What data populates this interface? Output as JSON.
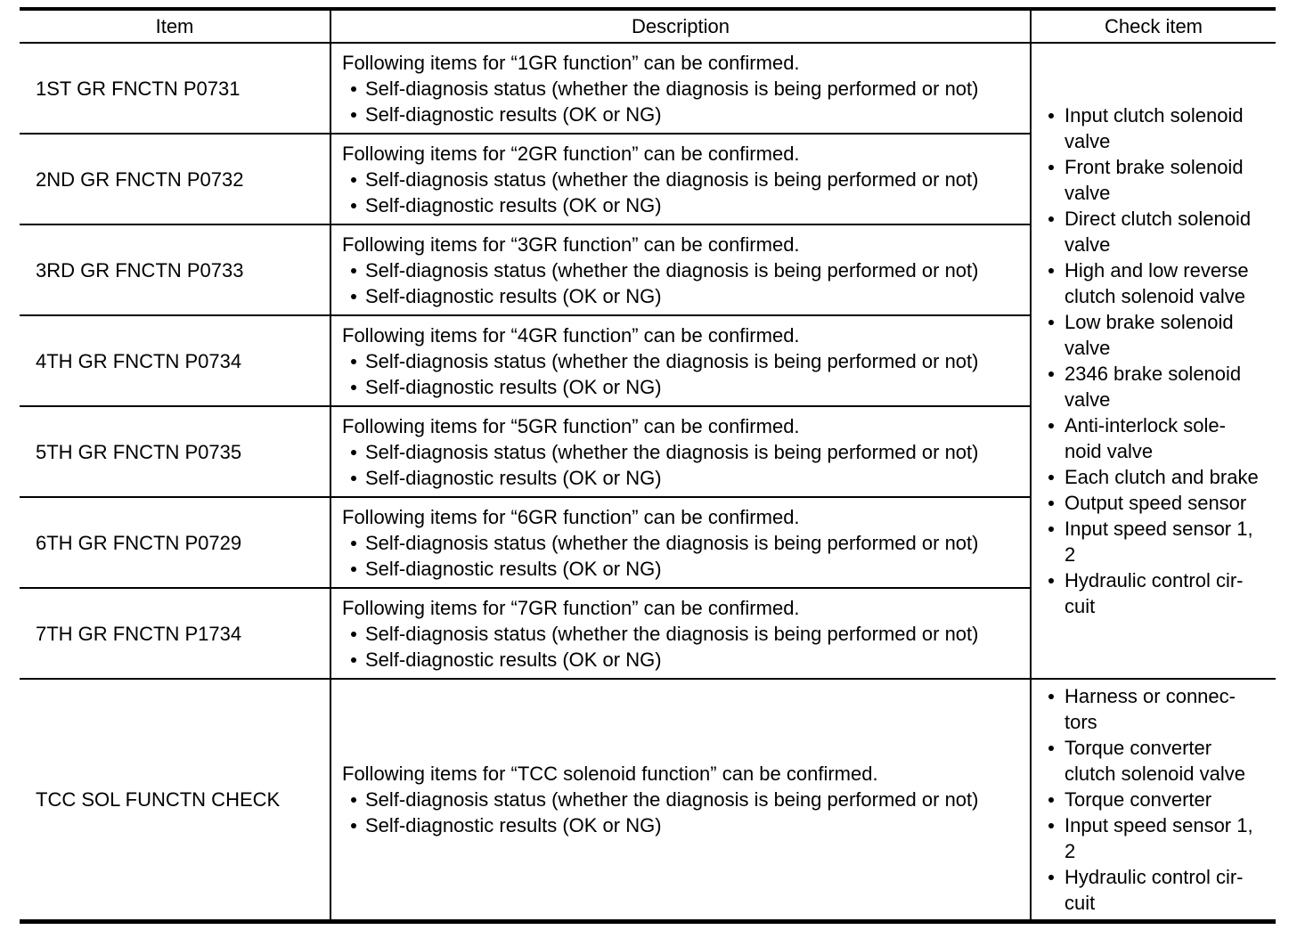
{
  "table": {
    "headers": {
      "item": "Item",
      "description": "Description",
      "check": "Check item"
    },
    "gear_rows": [
      {
        "item": "1ST GR FNCTN P0731",
        "desc_intro": "Following items for “1GR function” can be confirmed.",
        "desc_bullets": [
          "Self-diagnosis status (whether the diagnosis is being performed or not)",
          "Self-diagnostic results (OK or NG)"
        ]
      },
      {
        "item": "2ND GR FNCTN P0732",
        "desc_intro": "Following items for “2GR function” can be confirmed.",
        "desc_bullets": [
          "Self-diagnosis status (whether the diagnosis is being performed or not)",
          "Self-diagnostic results (OK or NG)"
        ]
      },
      {
        "item": "3RD GR FNCTN P0733",
        "desc_intro": "Following items for “3GR function” can be confirmed.",
        "desc_bullets": [
          "Self-diagnosis status (whether the diagnosis is being performed or not)",
          "Self-diagnostic results (OK or NG)"
        ]
      },
      {
        "item": "4TH GR FNCTN P0734",
        "desc_intro": "Following items for “4GR function” can be confirmed.",
        "desc_bullets": [
          "Self-diagnosis status (whether the diagnosis is being performed or not)",
          "Self-diagnostic results (OK or NG)"
        ]
      },
      {
        "item": "5TH GR FNCTN P0735",
        "desc_intro": "Following items for “5GR function” can be confirmed.",
        "desc_bullets": [
          "Self-diagnosis status (whether the diagnosis is being performed or not)",
          "Self-diagnostic results (OK or NG)"
        ]
      },
      {
        "item": "6TH GR FNCTN P0729",
        "desc_intro": "Following items for “6GR function” can be confirmed.",
        "desc_bullets": [
          "Self-diagnosis status (whether the diagnosis is being performed or not)",
          "Self-diagnostic results (OK or NG)"
        ]
      },
      {
        "item": "7TH GR FNCTN P1734",
        "desc_intro": "Following items for “7GR function” can be confirmed.",
        "desc_bullets": [
          "Self-diagnosis status (whether the diagnosis is being performed or not)",
          "Self-diagnostic results (OK or NG)"
        ]
      }
    ],
    "gear_check_items": [
      "Input clutch solenoid\nvalve",
      "Front brake solenoid\nvalve",
      "Direct clutch solenoid\nvalve",
      "High and low reverse\nclutch solenoid valve",
      "Low brake solenoid\nvalve",
      "2346 brake solenoid\nvalve",
      "Anti-interlock sole-\nnoid valve",
      "Each clutch and brake",
      "Output speed sensor",
      "Input speed sensor 1,\n2",
      "Hydraulic control cir-\ncuit"
    ],
    "tcc_row": {
      "item": "TCC SOL FUNCTN CHECK",
      "desc_intro": "Following items for “TCC solenoid function” can be confirmed.",
      "desc_bullets": [
        "Self-diagnosis status (whether the diagnosis is being performed or not)",
        "Self-diagnostic results (OK or NG)"
      ],
      "check_items": [
        "Harness or connec-\ntors",
        "Torque converter\nclutch solenoid valve",
        "Torque converter",
        "Input speed sensor 1,\n2",
        "Hydraulic control cir-\ncuit"
      ]
    }
  }
}
